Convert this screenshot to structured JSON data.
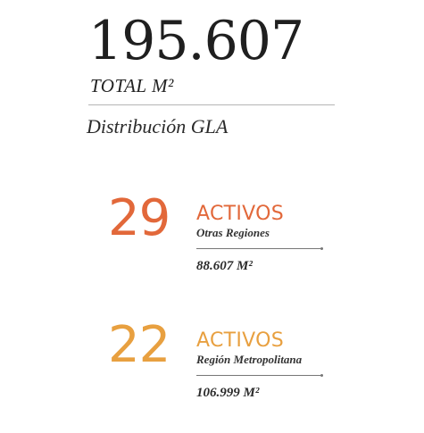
{
  "colors": {
    "text_dark": "#1f1f1f",
    "divider": "#b5b5b5",
    "orange_accent": "#e2683a",
    "amber_accent": "#e8a040"
  },
  "summary": {
    "total_value": "195.607",
    "total_label": "TOTAL M²",
    "distribution_title": "Distribución GLA"
  },
  "groups": [
    {
      "count": "29",
      "label": "ACTIVOS",
      "region": "Otras Regiones",
      "area": "88.607 M²",
      "color": "#e2683a"
    },
    {
      "count": "22",
      "label": "ACTIVOS",
      "region": "Región Metropolitana",
      "area": "106.999 M²",
      "color": "#e8a040"
    }
  ]
}
